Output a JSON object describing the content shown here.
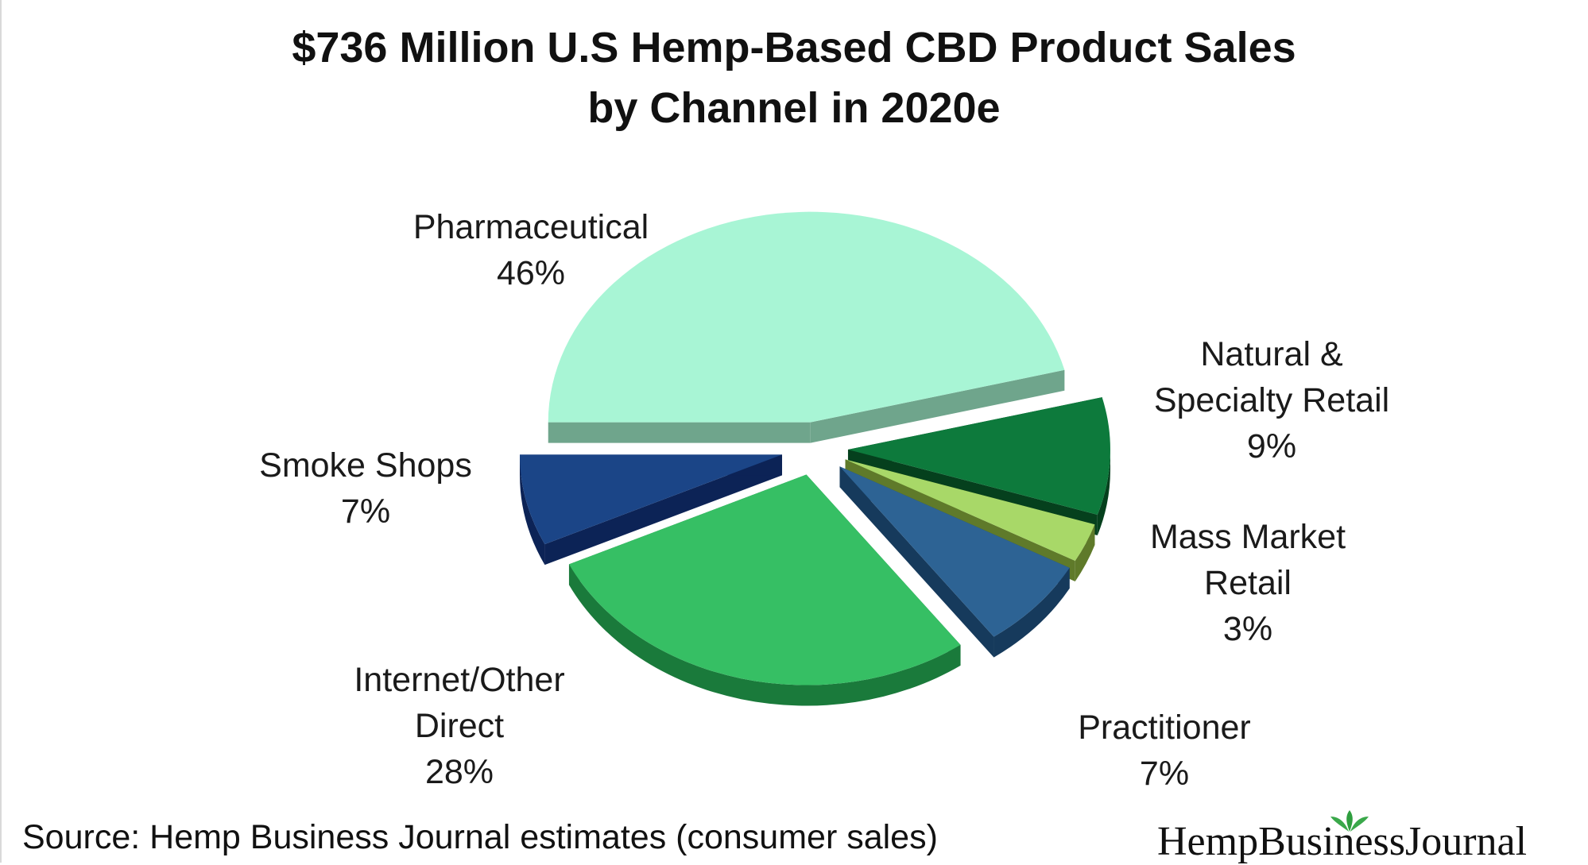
{
  "chart_data": {
    "type": "pie",
    "title": "$736 Million U.S Hemp-Based CBD Product Sales",
    "subtitle": "by Channel in 2020e",
    "slices": [
      {
        "label_lines": [
          "Pharmaceutical"
        ],
        "value": 46,
        "value_label": "46%",
        "color": "#a8f5d5",
        "side": "#6fa58c"
      },
      {
        "label_lines": [
          "Natural &",
          "Specialty Retail"
        ],
        "value": 9,
        "value_label": "9%",
        "color": "#0d7a3c",
        "side": "#05401d"
      },
      {
        "label_lines": [
          "Mass Market",
          "Retail"
        ],
        "value": 3,
        "value_label": "3%",
        "color": "#a8d868",
        "side": "#5f7a2a"
      },
      {
        "label_lines": [
          "Practitioner"
        ],
        "value": 7,
        "value_label": "7%",
        "color": "#2d6394",
        "side": "#163a5c"
      },
      {
        "label_lines": [
          "Internet/Other",
          "Direct"
        ],
        "value": 28,
        "value_label": "28%",
        "color": "#36bf64",
        "side": "#1a7a3b"
      },
      {
        "label_lines": [
          "Smoke Shops"
        ],
        "value": 7,
        "value_label": "7%",
        "color": "#1b4587",
        "side": "#0c2356"
      }
    ]
  },
  "footer": {
    "source": "Source: Hemp Business Journal estimates (consumer sales)",
    "brand": "HempBusinessJournal"
  }
}
